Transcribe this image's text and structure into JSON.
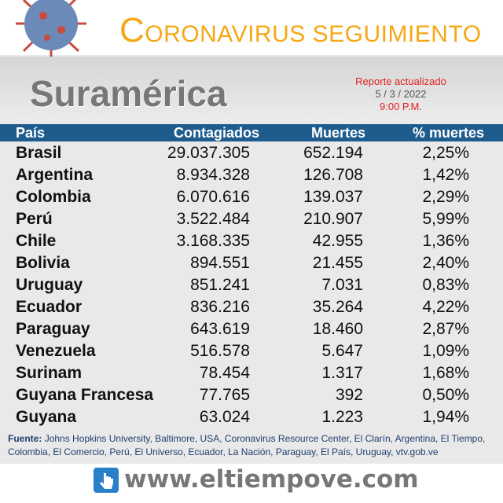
{
  "header": {
    "title_main": "CORONAVIRUS",
    "title_sub": "SEGUIMIENTO",
    "region": "Suramérica",
    "report": {
      "label": "Reporte actualizado",
      "date": "5 / 3 / 2022",
      "time": "9:00 P.M."
    }
  },
  "table": {
    "columns": [
      "País",
      "Contagiados",
      "Muertes",
      "% muertes"
    ],
    "rows": [
      [
        "Brasil",
        "29.037.305",
        "652.194",
        "2,25%"
      ],
      [
        "Argentina",
        "8.934.328",
        "126.708",
        "1,42%"
      ],
      [
        "Colombia",
        "6.070.616",
        "139.037",
        "2,29%"
      ],
      [
        "Perú",
        "3.522.484",
        "210.907",
        "5,99%"
      ],
      [
        "Chile",
        "3.168.335",
        "42.955",
        "1,36%"
      ],
      [
        "Bolivia",
        "894.551",
        "21.455",
        "2,40%"
      ],
      [
        "Uruguay",
        "851.241",
        "7.031",
        "0,83%"
      ],
      [
        "Ecuador",
        "836.216",
        "35.264",
        "4,22%"
      ],
      [
        "Paraguay",
        "643.619",
        "18.460",
        "2,87%"
      ],
      [
        "Venezuela",
        "516.578",
        "5.647",
        "1,09%"
      ],
      [
        "Surinam",
        "78.454",
        "1.317",
        "1,68%"
      ],
      [
        "Guyana Francesa",
        "77.765",
        "392",
        "0,50%"
      ],
      [
        "Guyana",
        "63.024",
        "1.223",
        "1,94%"
      ]
    ]
  },
  "footer": {
    "source_label": "Fuente:",
    "source_text": "Johns Hopkins University, Baltimore, USA, Coronavirus Resource Center,  El Clarín, Argentina, El Tiempo, Colombia, El Comercio, Perú, El Universo, Ecuador, La Nación, Paraguay, El País, Uruguay, vtv.gob.ve",
    "website": "www.eltiempove.com"
  }
}
